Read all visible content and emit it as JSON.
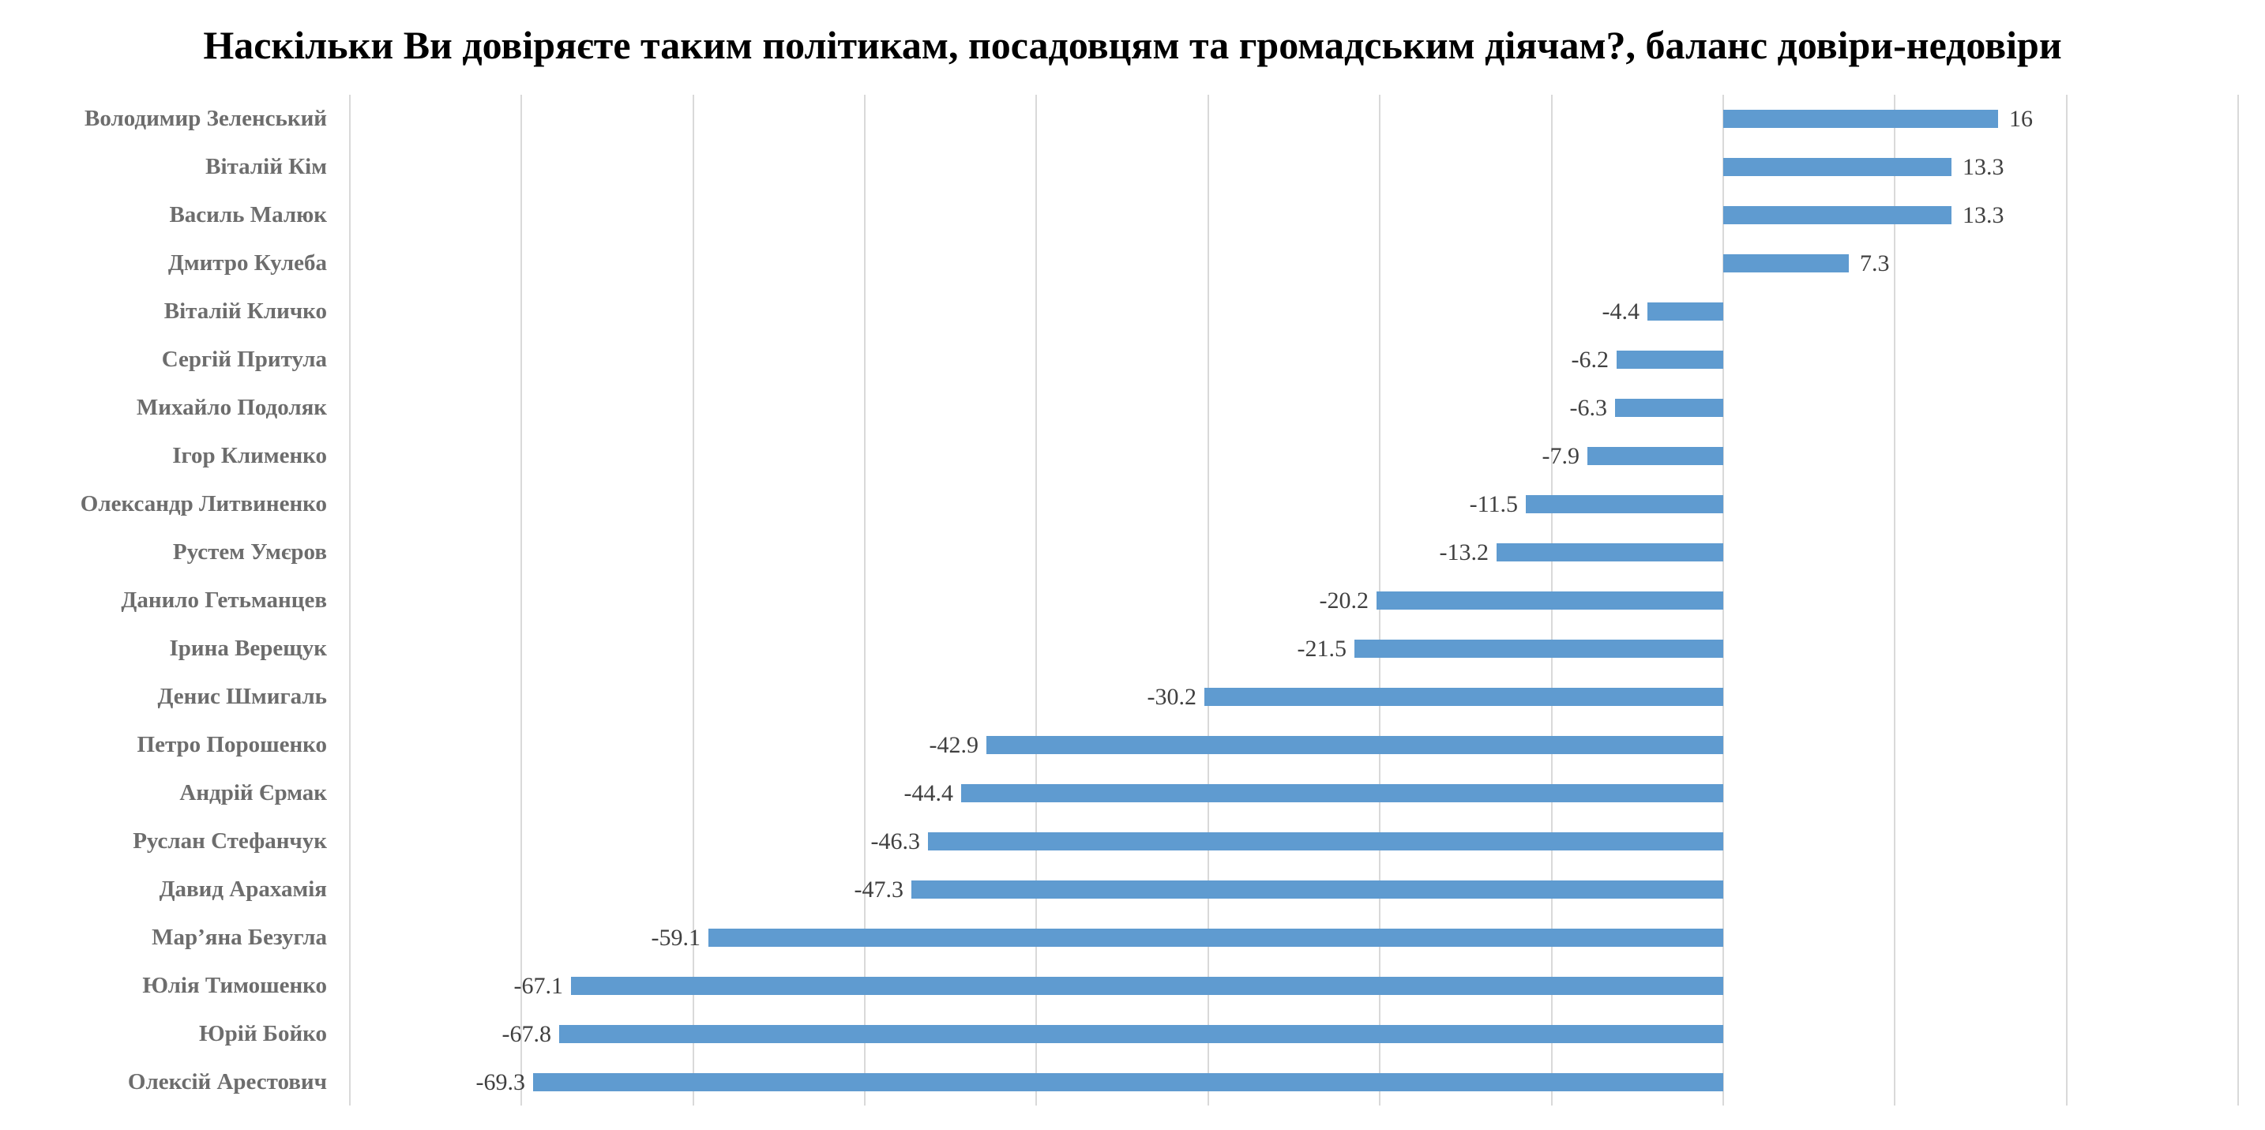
{
  "chart_data": {
    "type": "bar",
    "orientation": "horizontal",
    "title": "Наскільки Ви довіряєте таким політикам, посадовцям та громадським діячам?, баланс довіри-недовіри",
    "xlabel": "",
    "ylabel": "",
    "xlim": [
      -80,
      30
    ],
    "grid": true,
    "grid_step": 10,
    "legend": null,
    "bar_color": "#5f9bd0",
    "categories": [
      "Володимир Зеленський",
      "Віталій Кім",
      "Василь Малюк",
      "Дмитро Кулеба",
      "Віталій Кличко",
      "Сергій Притула",
      "Михайло Подоляк",
      "Ігор Клименко",
      "Олександр Литвиненко",
      "Рустем Умєров",
      "Данило Гетьманцев",
      "Ірина Верещук",
      "Денис Шмигаль",
      "Петро Порошенко",
      "Андрій Єрмак",
      "Руслан Стефанчук",
      "Давид Арахамія",
      "Мар’яна Безугла",
      "Юлія Тимошенко",
      "Юрій Бойко",
      "Олексій Арестович"
    ],
    "values": [
      16,
      13.3,
      13.3,
      7.3,
      -4.4,
      -6.2,
      -6.3,
      -7.9,
      -11.5,
      -13.2,
      -20.2,
      -21.5,
      -30.2,
      -42.9,
      -44.4,
      -46.3,
      -47.3,
      -59.1,
      -67.1,
      -67.8,
      -69.3
    ],
    "value_labels": [
      "16",
      "13.3",
      "13.3",
      "7.3",
      "-4.4",
      "-6.2",
      "-6.3",
      "-7.9",
      "-11.5",
      "-13.2",
      "-20.2",
      "-21.5",
      "-30.2",
      "-42.9",
      "-44.4",
      "-46.3",
      "-47.3",
      "-59.1",
      "-67.1",
      "-67.8",
      "-69.3"
    ]
  },
  "colors": {
    "bar": "#5f9bd0",
    "gridline": "#d9d9d9",
    "category_label": "#6d6d6d",
    "value_label": "#404040",
    "title": "#000000"
  }
}
